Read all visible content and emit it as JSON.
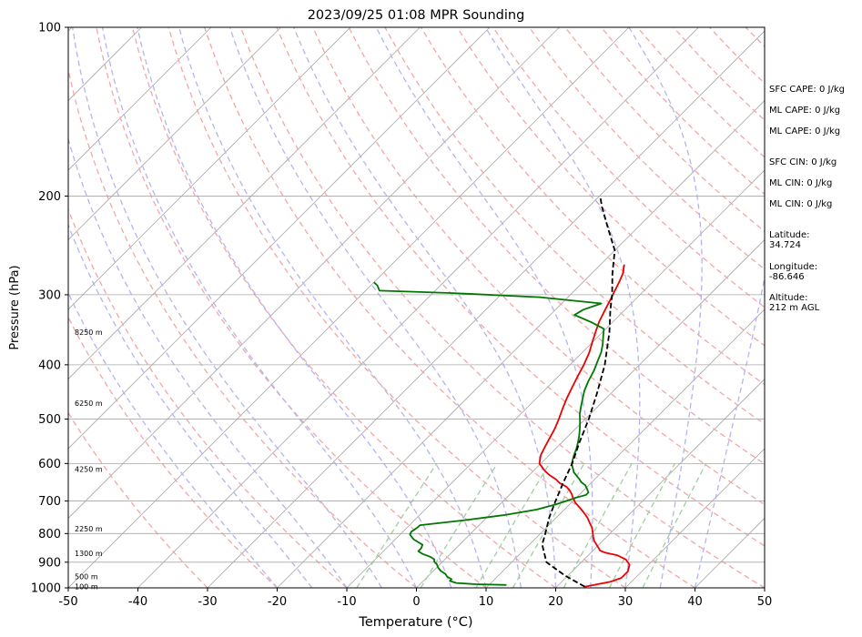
{
  "chart_data": {
    "type": "line",
    "title": "2023/09/25 01:08 MPR Sounding",
    "xlabel": "Temperature (°C)",
    "ylabel": "Pressure (hPa)",
    "xlim": [
      -50,
      50
    ],
    "ylim": [
      1000,
      100
    ],
    "y_scale": "log",
    "grid": true,
    "x_ticks": [
      -50,
      -40,
      -30,
      -20,
      -10,
      0,
      10,
      20,
      30,
      40,
      50
    ],
    "y_ticks": [
      100,
      200,
      300,
      400,
      500,
      600,
      700,
      800,
      900,
      1000
    ],
    "height_labels": [
      {
        "p": 995,
        "text": "100 m"
      },
      {
        "p": 955,
        "text": "500 m"
      },
      {
        "p": 867,
        "text": "1300 m"
      },
      {
        "p": 785,
        "text": "2250 m"
      },
      {
        "p": 614,
        "text": "4250 m"
      },
      {
        "p": 468,
        "text": "6250 m"
      },
      {
        "p": 350,
        "text": "8250 m"
      }
    ],
    "series": [
      {
        "role": "temperature",
        "color": "#ee0000",
        "points": [
          [
            24,
            995
          ],
          [
            25.5,
            985
          ],
          [
            27,
            975
          ],
          [
            28,
            960
          ],
          [
            28,
            935
          ],
          [
            27.3,
            910
          ],
          [
            26,
            890
          ],
          [
            24.2,
            875
          ],
          [
            22,
            865
          ],
          [
            21,
            858
          ],
          [
            20.5,
            850
          ],
          [
            19.7,
            838
          ],
          [
            18.8,
            825
          ],
          [
            18,
            810
          ],
          [
            17.3,
            795
          ],
          [
            16.5,
            780
          ],
          [
            15.5,
            765
          ],
          [
            14.5,
            750
          ],
          [
            13.3,
            735
          ],
          [
            12,
            720
          ],
          [
            10.6,
            705
          ],
          [
            9.5,
            690
          ],
          [
            8.8,
            680
          ],
          [
            8,
            670
          ],
          [
            7,
            660
          ],
          [
            5.5,
            650
          ],
          [
            4.4,
            640
          ],
          [
            3,
            630
          ],
          [
            1.8,
            620
          ],
          [
            0.8,
            610
          ],
          [
            -0.2,
            600
          ],
          [
            -1.2,
            580
          ],
          [
            -1.8,
            560
          ],
          [
            -2.4,
            540
          ],
          [
            -3,
            520
          ],
          [
            -3.8,
            500
          ],
          [
            -4.7,
            480
          ],
          [
            -5.6,
            460
          ],
          [
            -6.4,
            440
          ],
          [
            -7.2,
            420
          ],
          [
            -8,
            400
          ],
          [
            -9,
            380
          ],
          [
            -10,
            365
          ],
          [
            -11,
            350
          ],
          [
            -12,
            335
          ],
          [
            -12.8,
            320
          ],
          [
            -13.6,
            305
          ],
          [
            -14.2,
            295
          ],
          [
            -14.8,
            285
          ],
          [
            -15.5,
            275
          ],
          [
            -16.6,
            265
          ]
        ]
      },
      {
        "role": "dewpoint",
        "color": "#007700",
        "points": [
          [
            12.5,
            988
          ],
          [
            8,
            985
          ],
          [
            5,
            980
          ],
          [
            3.8,
            972
          ],
          [
            3.8,
            965
          ],
          [
            2.8,
            955
          ],
          [
            2.2,
            945
          ],
          [
            1,
            932
          ],
          [
            0.2,
            920
          ],
          [
            -0.5,
            907
          ],
          [
            -1.2,
            898
          ],
          [
            -1.5,
            890
          ],
          [
            -2.5,
            880
          ],
          [
            -4,
            870
          ],
          [
            -5,
            860
          ],
          [
            -5,
            850
          ],
          [
            -5.3,
            838
          ],
          [
            -6.4,
            828
          ],
          [
            -7.3,
            820
          ],
          [
            -8,
            811
          ],
          [
            -8.6,
            803
          ],
          [
            -8.8,
            794
          ],
          [
            -8.5,
            780
          ],
          [
            -8.5,
            773
          ],
          [
            -3,
            758
          ],
          [
            2,
            742
          ],
          [
            6,
            725
          ],
          [
            8,
            710
          ],
          [
            9,
            700
          ],
          [
            10,
            690
          ],
          [
            11,
            683
          ],
          [
            11,
            676
          ],
          [
            10.3,
            666
          ],
          [
            9.5,
            656
          ],
          [
            8.5,
            648
          ],
          [
            7.8,
            640
          ],
          [
            7,
            632
          ],
          [
            6,
            622
          ],
          [
            5.3,
            612
          ],
          [
            4.5,
            601
          ],
          [
            4,
            590
          ],
          [
            3.5,
            578
          ],
          [
            3,
            565
          ],
          [
            2.3,
            550
          ],
          [
            1.5,
            535
          ],
          [
            0.6,
            520
          ],
          [
            -0.4,
            505
          ],
          [
            -1.5,
            490
          ],
          [
            -2.4,
            475
          ],
          [
            -3.3,
            460
          ],
          [
            -4.2,
            445
          ],
          [
            -5,
            428
          ],
          [
            -5.7,
            410
          ],
          [
            -6.5,
            395
          ],
          [
            -7.3,
            380
          ],
          [
            -8.3,
            367
          ],
          [
            -9.3,
            356
          ],
          [
            -10.3,
            345
          ],
          [
            -13,
            336
          ],
          [
            -16.5,
            326
          ],
          [
            -16,
            319
          ],
          [
            -14.3,
            311
          ],
          [
            -24,
            303
          ],
          [
            -37,
            298
          ],
          [
            -48,
            295
          ],
          [
            -49,
            289
          ],
          [
            -50,
            285
          ]
        ]
      },
      {
        "role": "parcel",
        "color": "#000000",
        "dashed": true,
        "points": [
          [
            24,
            995
          ],
          [
            19.5,
            950
          ],
          [
            15,
            900
          ],
          [
            12.5,
            850
          ],
          [
            11.8,
            836
          ],
          [
            10.7,
            800
          ],
          [
            9,
            750
          ],
          [
            7.5,
            700
          ],
          [
            6,
            650
          ],
          [
            4.5,
            600
          ],
          [
            2.5,
            550
          ],
          [
            0.5,
            500
          ],
          [
            -2,
            450
          ],
          [
            -5,
            400
          ],
          [
            -9,
            350
          ],
          [
            -12,
            320
          ],
          [
            -14,
            300
          ],
          [
            -17,
            275
          ],
          [
            -20,
            250
          ],
          [
            -24.2,
            228
          ],
          [
            -28.1,
            209
          ],
          [
            -29.9,
            200
          ]
        ]
      }
    ],
    "legend_colors": {
      "isotherm_grid": "#a8a8a8",
      "dry_adiabat": "#f4a6a6",
      "moist_adiabat": "#b4b4f0",
      "mixing_ratio": "#9fcf9f"
    }
  },
  "side_panel": {
    "sfc_cape": "SFC CAPE: 0 J/kg",
    "ml_cape": "ML CAPE: 0 J/kg",
    "ml_cape_2": "ML CAPE: 0 J/kg",
    "sfc_cin": "SFC CIN: 0 J/kg",
    "ml_cin": "ML CIN: 0 J/kg",
    "ml_cin_2": "ML CIN: 0 J/kg",
    "latitude": "Latitude:\n34.724",
    "longitude": "Longitude:\n-86.646",
    "altitude": "Altitude:\n212 m AGL"
  }
}
